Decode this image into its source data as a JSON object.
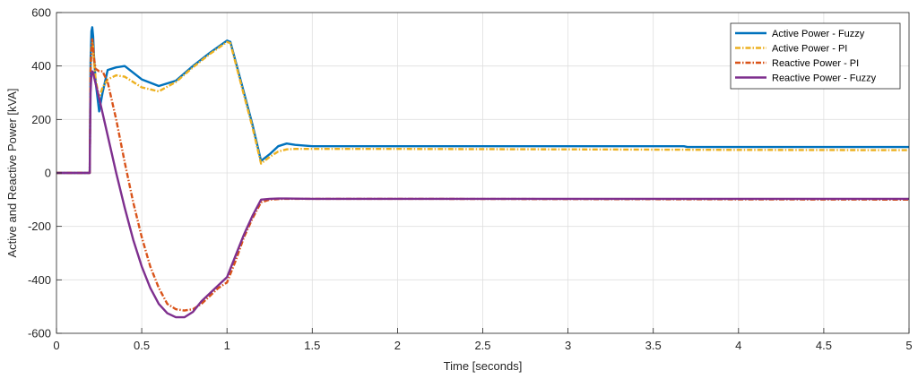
{
  "chart_data": {
    "type": "line",
    "title": "",
    "xlabel": "Time [seconds]",
    "ylabel": "Active and Reactive Power [kVA]",
    "xlim": [
      0,
      5
    ],
    "ylim": [
      -600,
      600
    ],
    "xticks": [
      0,
      0.5,
      1,
      1.5,
      2,
      2.5,
      3,
      3.5,
      4,
      4.5,
      5
    ],
    "xtick_labels": [
      "0",
      "0.5",
      "1",
      "1.5",
      "2",
      "2.5",
      "3",
      "3.5",
      "4",
      "4.5",
      "5"
    ],
    "yticks": [
      -600,
      -400,
      -200,
      0,
      200,
      400,
      600
    ],
    "ytick_labels": [
      "-600",
      "-400",
      "-200",
      "0",
      "200",
      "400",
      "600"
    ],
    "grid": true,
    "legend_position": "top-right",
    "series": [
      {
        "name": "Active Power - Fuzzy",
        "color": "#0072BD",
        "style": "solid",
        "x": [
          0,
          0.195,
          0.2,
          0.205,
          0.21,
          0.215,
          0.22,
          0.23,
          0.25,
          0.27,
          0.3,
          0.35,
          0.4,
          0.5,
          0.6,
          0.7,
          0.8,
          0.9,
          1.0,
          1.02,
          1.1,
          1.15,
          1.2,
          1.25,
          1.3,
          1.35,
          1.4,
          1.5,
          2,
          3,
          3.68,
          3.7,
          4,
          5
        ],
        "y": [
          0,
          0,
          420,
          530,
          545,
          510,
          440,
          340,
          230,
          300,
          385,
          395,
          400,
          350,
          325,
          345,
          400,
          450,
          495,
          490,
          300,
          180,
          45,
          70,
          100,
          110,
          105,
          100,
          100,
          100,
          100,
          97,
          97,
          97
        ]
      },
      {
        "name": "Active Power - PI",
        "color": "#EDB120",
        "style": "dashdot",
        "x": [
          0,
          0.195,
          0.2,
          0.205,
          0.21,
          0.215,
          0.22,
          0.23,
          0.25,
          0.27,
          0.3,
          0.35,
          0.4,
          0.5,
          0.6,
          0.7,
          0.8,
          0.9,
          1.0,
          1.02,
          1.1,
          1.15,
          1.2,
          1.25,
          1.3,
          1.35,
          1.4,
          1.5,
          2,
          3,
          4,
          5
        ],
        "y": [
          0,
          0,
          380,
          470,
          490,
          470,
          420,
          350,
          280,
          320,
          350,
          365,
          360,
          320,
          305,
          340,
          395,
          445,
          490,
          485,
          290,
          170,
          35,
          60,
          80,
          88,
          90,
          90,
          90,
          88,
          86,
          85
        ]
      },
      {
        "name": "Reactive Power - PI",
        "color": "#D95319",
        "style": "dashdot",
        "x": [
          0,
          0.195,
          0.2,
          0.205,
          0.21,
          0.215,
          0.22,
          0.23,
          0.25,
          0.27,
          0.3,
          0.35,
          0.4,
          0.45,
          0.5,
          0.55,
          0.6,
          0.65,
          0.7,
          0.75,
          0.8,
          0.85,
          0.9,
          0.95,
          1.0,
          1.05,
          1.1,
          1.15,
          1.2,
          1.25,
          1.3,
          1.35,
          1.5,
          2,
          3,
          4,
          5
        ],
        "y": [
          0,
          0,
          380,
          460,
          500,
          470,
          430,
          390,
          380,
          380,
          340,
          200,
          40,
          -110,
          -240,
          -350,
          -430,
          -490,
          -510,
          -515,
          -510,
          -490,
          -460,
          -430,
          -410,
          -330,
          -240,
          -170,
          -110,
          -100,
          -98,
          -97,
          -97,
          -97,
          -98,
          -99,
          -100
        ]
      },
      {
        "name": "Reactive Power - Fuzzy",
        "color": "#7E2F8E",
        "style": "solid",
        "x": [
          0,
          0.195,
          0.2,
          0.205,
          0.21,
          0.215,
          0.22,
          0.25,
          0.3,
          0.35,
          0.4,
          0.45,
          0.5,
          0.55,
          0.6,
          0.65,
          0.7,
          0.75,
          0.8,
          0.85,
          0.9,
          0.95,
          1.0,
          1.05,
          1.1,
          1.15,
          1.2,
          1.25,
          1.3,
          1.35,
          1.5,
          2,
          3,
          4,
          5
        ],
        "y": [
          0,
          0,
          300,
          370,
          380,
          375,
          360,
          280,
          140,
          0,
          -130,
          -250,
          -350,
          -430,
          -490,
          -525,
          -540,
          -540,
          -520,
          -480,
          -450,
          -420,
          -390,
          -310,
          -230,
          -160,
          -100,
          -97,
          -96,
          -96,
          -97,
          -97,
          -97,
          -97,
          -97
        ]
      }
    ]
  }
}
